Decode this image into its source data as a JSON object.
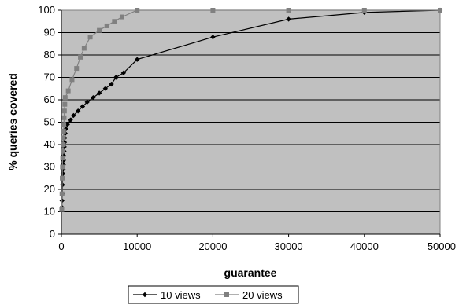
{
  "chart_data": {
    "type": "line",
    "xlabel": "guarantee",
    "ylabel": "% queries covered",
    "xlim": [
      0,
      50000
    ],
    "ylim": [
      0,
      100
    ],
    "x_ticks": [
      "0",
      "10000",
      "20000",
      "30000",
      "40000",
      "50000"
    ],
    "y_ticks": [
      "0",
      "10",
      "20",
      "30",
      "40",
      "50",
      "60",
      "70",
      "80",
      "90",
      "100"
    ],
    "grid": "horizontal",
    "legend_position": "bottom",
    "plot_background": "#c0c0c0",
    "series": [
      {
        "name": "10 views",
        "color": "#000000",
        "marker": "diamond",
        "points": [
          [
            50,
            12
          ],
          [
            80,
            15
          ],
          [
            110,
            18
          ],
          [
            140,
            22
          ],
          [
            170,
            25
          ],
          [
            200,
            27
          ],
          [
            230,
            29
          ],
          [
            260,
            31
          ],
          [
            290,
            33
          ],
          [
            320,
            35
          ],
          [
            350,
            37
          ],
          [
            380,
            39
          ],
          [
            410,
            41
          ],
          [
            450,
            43
          ],
          [
            500,
            45
          ],
          [
            600,
            47
          ],
          [
            800,
            49
          ],
          [
            1200,
            51
          ],
          [
            1600,
            53
          ],
          [
            2200,
            55
          ],
          [
            2800,
            57
          ],
          [
            3400,
            59
          ],
          [
            4200,
            61
          ],
          [
            5000,
            63
          ],
          [
            5800,
            65
          ],
          [
            6600,
            67
          ],
          [
            7200,
            70
          ],
          [
            8200,
            72
          ],
          [
            10000,
            78
          ],
          [
            20000,
            88
          ],
          [
            30000,
            96
          ],
          [
            40000,
            99
          ],
          [
            50000,
            100
          ]
        ]
      },
      {
        "name": "20 views",
        "color": "#808080",
        "marker": "square",
        "points": [
          [
            50,
            11
          ],
          [
            80,
            18
          ],
          [
            110,
            25
          ],
          [
            140,
            30
          ],
          [
            170,
            34
          ],
          [
            200,
            37
          ],
          [
            230,
            40
          ],
          [
            260,
            43
          ],
          [
            290,
            46
          ],
          [
            320,
            49
          ],
          [
            360,
            52
          ],
          [
            400,
            55
          ],
          [
            450,
            58
          ],
          [
            500,
            61
          ],
          [
            900,
            64
          ],
          [
            1400,
            69
          ],
          [
            2000,
            74
          ],
          [
            2500,
            79
          ],
          [
            3000,
            83
          ],
          [
            3800,
            88
          ],
          [
            5000,
            91
          ],
          [
            6000,
            93
          ],
          [
            7000,
            95
          ],
          [
            8000,
            97
          ],
          [
            10000,
            100
          ],
          [
            20000,
            100
          ],
          [
            30000,
            100
          ],
          [
            40000,
            100
          ],
          [
            50000,
            100
          ]
        ]
      }
    ]
  }
}
